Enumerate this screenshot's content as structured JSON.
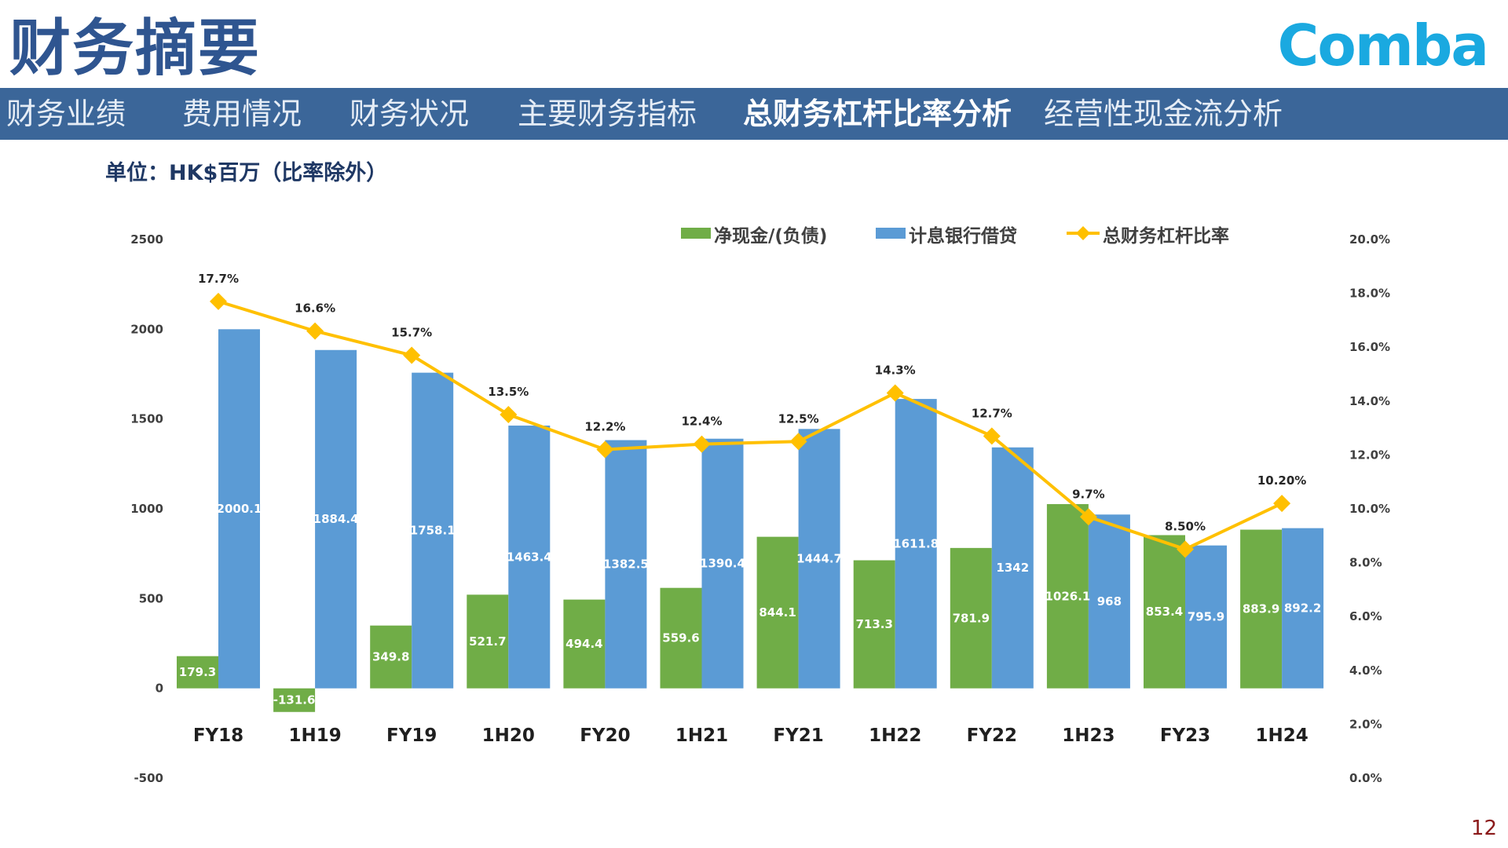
{
  "header": {
    "title": "财务摘要",
    "logo_text": "Comba"
  },
  "nav": {
    "tabs": [
      {
        "label": "财务业绩",
        "active": false
      },
      {
        "label": "费用情况",
        "active": false
      },
      {
        "label": "财务状况",
        "active": false
      },
      {
        "label": "主要财务指标",
        "active": false
      },
      {
        "label": "总财务杠杆比率分析",
        "active": true
      },
      {
        "label": "经营性现金流分析",
        "active": false
      }
    ]
  },
  "unit_label": "单位：HK$百万（比率除外）",
  "page_number": "12",
  "colors": {
    "title": "#2f5590",
    "nav_bg": "#3b6699",
    "logo": "#1aa9e0",
    "net_cash": "#70ad47",
    "bank_loans": "#5b9bd5",
    "ratio_line": "#ffc000"
  },
  "chart_data": {
    "type": "bar",
    "categories": [
      "FY18",
      "1H19",
      "FY19",
      "1H20",
      "FY20",
      "1H21",
      "FY21",
      "1H22",
      "FY22",
      "1H23",
      "FY23",
      "1H24"
    ],
    "series": [
      {
        "name": "净现金/(负债)",
        "type": "bar",
        "axis": "left",
        "values": [
          179.3,
          -131.6,
          349.8,
          521.7,
          494.4,
          559.6,
          844.1,
          713.3,
          781.9,
          1026.1,
          853.4,
          883.9
        ],
        "labels": [
          "179.3",
          "-131.6",
          "349.8",
          "521.7",
          "494.4",
          "559.6",
          "844.1",
          "713.3",
          "781.9",
          "1026.1",
          "853.4",
          "883.9"
        ]
      },
      {
        "name": "计息银行借贷",
        "type": "bar",
        "axis": "left",
        "values": [
          2000.1,
          1884.4,
          1758.1,
          1463.4,
          1382.5,
          1390.4,
          1444.7,
          1611.8,
          1342,
          968,
          795.9,
          892.2
        ],
        "labels": [
          "2000.1",
          "1884.4",
          "1758.1",
          "1463.4",
          "1382.5",
          "1390.4",
          "1444.7",
          "1611.8",
          "1342",
          "968",
          "795.9",
          "892.2"
        ]
      },
      {
        "name": "总财务杠杆比率",
        "type": "line",
        "axis": "right",
        "values": [
          17.7,
          16.6,
          15.7,
          13.5,
          12.2,
          12.4,
          12.5,
          14.3,
          12.7,
          9.7,
          8.5,
          10.2
        ],
        "labels": [
          "17.7%",
          "16.6%",
          "15.7%",
          "13.5%",
          "12.2%",
          "12.4%",
          "12.5%",
          "14.3%",
          "12.7%",
          "9.7%",
          "8.50%",
          "10.20%"
        ]
      }
    ],
    "left_axis": {
      "ylim": [
        -500,
        2500
      ],
      "ticks": [
        "2500",
        "2000",
        "1500",
        "1000",
        "500",
        "0",
        "-500"
      ]
    },
    "right_axis": {
      "ylim": [
        0,
        20
      ],
      "ticks": [
        "20.0%",
        "18.0%",
        "16.0%",
        "14.0%",
        "12.0%",
        "10.0%",
        "8.0%",
        "6.0%",
        "4.0%",
        "2.0%",
        "0.0%"
      ]
    },
    "grid": false,
    "legend_position": "top"
  }
}
